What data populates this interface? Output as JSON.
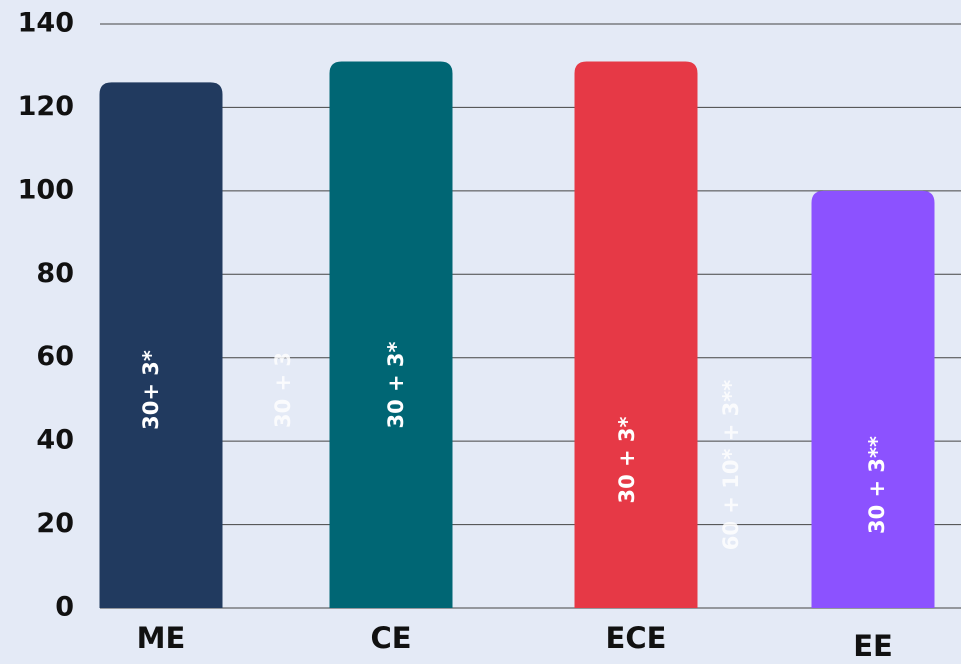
{
  "chart_data": {
    "type": "bar",
    "categories": [
      "ME",
      "CE",
      "ECE",
      "EE"
    ],
    "values": [
      126,
      131,
      131,
      100
    ],
    "colors": [
      "#213a5f",
      "#006674",
      "#e63946",
      "#8c52ff"
    ],
    "ylim": [
      0,
      140
    ],
    "yticks": [
      0,
      20,
      40,
      60,
      80,
      100,
      120,
      140
    ],
    "grid": true,
    "annotations": [
      "30+ 3*",
      "30 + 3",
      "30 + 3*",
      "30 + 3*",
      "60 + 10* + 3**",
      "30 + 3**"
    ]
  }
}
